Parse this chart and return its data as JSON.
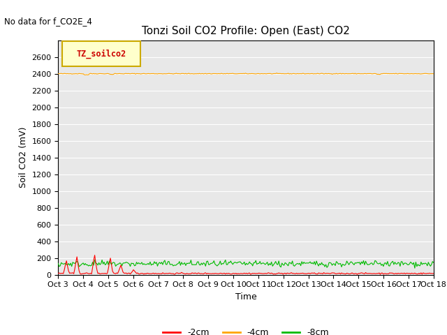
{
  "title": "Tonzi Soil CO2 Profile: Open (East) CO2",
  "no_data_text": "No data for f_CO2E_4",
  "legend_box_text": "TZ_soilco2",
  "ylabel": "Soil CO2 (mV)",
  "xlabel": "Time",
  "ylim": [
    0,
    2800
  ],
  "yticks": [
    0,
    200,
    400,
    600,
    800,
    1000,
    1200,
    1400,
    1600,
    1800,
    2000,
    2200,
    2400,
    2600
  ],
  "xtick_labels": [
    "Oct 3",
    "Oct 4",
    "Oct 5",
    "Oct 6",
    "Oct 7",
    "Oct 8",
    "Oct 9",
    "Oct 10",
    "Oct 11",
    "Oct 12",
    "Oct 13",
    "Oct 14",
    "Oct 15",
    "Oct 16",
    "Oct 17",
    "Oct 18"
  ],
  "n_points": 360,
  "orange_base": 2400,
  "red_base": 15,
  "green_base": 130,
  "green_noise": 18,
  "line_colors": {
    "red": "#ff0000",
    "orange": "#ffa500",
    "green": "#00bb00"
  },
  "line_width": 0.8,
  "bg_color": "#e8e8e8",
  "legend_entries": [
    "-2cm",
    "-4cm",
    "-8cm"
  ],
  "legend_colors": [
    "#ff0000",
    "#ffa500",
    "#00bb00"
  ],
  "title_fontsize": 11,
  "axis_label_fontsize": 9,
  "tick_fontsize": 8,
  "box_facecolor": "#ffffcc",
  "box_edgecolor": "#ccaa00",
  "box_text_color": "#cc0000"
}
